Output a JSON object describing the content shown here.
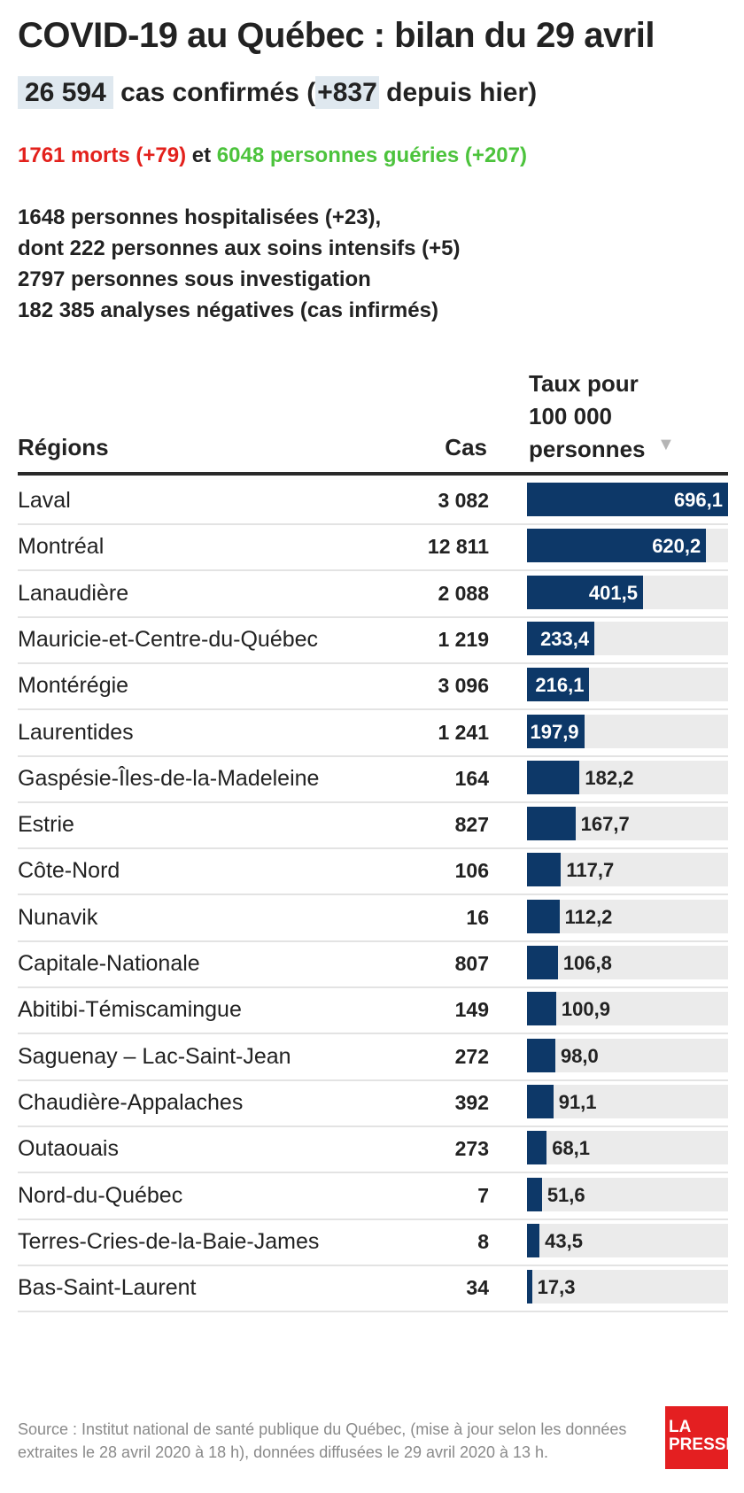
{
  "title": "COVID-19 au Québec : bilan du 29 avril",
  "summary": {
    "cases_total": "26 594",
    "cases_text": "cas confirmés (",
    "cases_delta": "+837",
    "cases_suffix": "depuis hier)",
    "deaths": "1761 morts (+79)",
    "and": "et",
    "recovered": "6048 personnes guéries (+207)",
    "colors": {
      "deaths": "#e3211c",
      "recovered": "#4cc33c",
      "highlight": "#dfe8ef"
    }
  },
  "stats": [
    "1648 personnes hospitalisées (+23),",
    "dont 222 personnes aux soins intensifs (+5)",
    "2797 personnes sous investigation",
    "182 385 analyses négatives (cas infirmés)"
  ],
  "table": {
    "col_region": "Régions",
    "col_cases": "Cas",
    "col_rate_lines": [
      "Taux pour",
      "100 000",
      "personnes"
    ],
    "sort_icon": "sort-down-icon",
    "bar_color": "#0d3868",
    "track_color": "#ebebeb"
  },
  "chart_data": {
    "type": "bar",
    "title": "COVID-19 au Québec : bilan du 29 avril",
    "xlabel": "",
    "ylabel": "",
    "xlim": [
      0,
      696.1
    ],
    "series": [
      {
        "values": [
          696.1,
          620.2,
          401.5,
          233.4,
          216.1,
          197.9,
          182.2,
          167.7,
          117.7,
          112.2,
          106.8,
          100.9,
          98.0,
          91.1,
          68.1,
          51.6,
          43.5,
          17.3
        ]
      }
    ],
    "categories": [
      "Laval",
      "Montréal",
      "Lanaudière",
      "Mauricie-et-Centre-du-Québec",
      "Montérégie",
      "Laurentides",
      "Gaspésie-Îles-de-la-Madeleine",
      "Estrie",
      "Côte-Nord",
      "Nunavik",
      "Capitale-Nationale",
      "Abitibi-Témiscamingue",
      "Saguenay – Lac-Saint-Jean",
      "Chaudière-Appalaches",
      "Outaouais",
      "Nord-du-Québec",
      "Terres-Cries-de-la-Baie-James",
      "Bas-Saint-Laurent"
    ],
    "cases": [
      "3 082",
      "12 811",
      "2 088",
      "1 219",
      "3 096",
      "1 241",
      "164",
      "827",
      "106",
      "16",
      "807",
      "149",
      "272",
      "392",
      "273",
      "7",
      "8",
      "34"
    ],
    "value_labels": [
      "696,1",
      "620,2",
      "401,5",
      "233,4",
      "216,1",
      "197,9",
      "182,2",
      "167,7",
      "117,7",
      "112,2",
      "106,8",
      "100,9",
      "98,0",
      "91,1",
      "68,1",
      "51,6",
      "43,5",
      "17,3"
    ]
  },
  "footer": {
    "source_line1": "Source : Institut national de santé publique du Québec, (mise à jour selon les données",
    "source_line2": "extraites le 28 avril 2020 à 18 h), données diffusées le 29 avril 2020 à 13 h.",
    "logo_line1": "LA",
    "logo_line2": "PRESSE",
    "logo_color": "#e41f21"
  }
}
